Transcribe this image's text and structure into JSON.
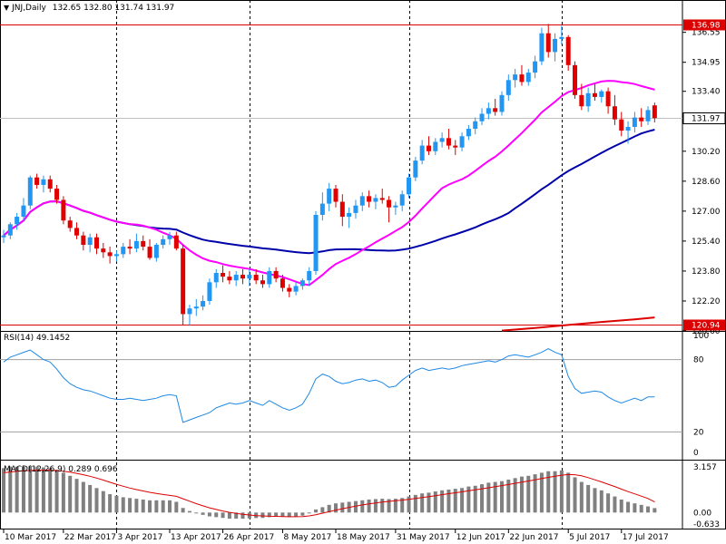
{
  "header": {
    "menu_glyph": "▼",
    "symbol_info": "JNJ,Daily",
    "ohlc": "132.65 132.80 131.74 131.97"
  },
  "colors": {
    "bull": "#2196f3",
    "bear": "#e00000",
    "ma20": "#ff00ff",
    "ma50": "#0000aa",
    "ma200": "#dd0000",
    "hline": "#dd0000",
    "rsi": "#1e88e5",
    "macd_hist": "#808080",
    "macd_signal": "#dd0000",
    "grid": "#000000"
  },
  "chart_data": {
    "type": "candlestick",
    "price_axis": {
      "ylim": [
        120.6,
        137.6
      ],
      "ticks": [
        "136.55",
        "134.95",
        "133.40",
        "131.80",
        "130.20",
        "128.60",
        "127.00",
        "125.40",
        "123.80",
        "122.20",
        "120.60"
      ],
      "hlines": [
        136.98,
        120.94
      ],
      "hline_labels": [
        "136.98",
        "120.94"
      ],
      "last_price": 131.97,
      "last_label": "131.97"
    },
    "x_labels": [
      {
        "idx": 0,
        "text": "10 Mar 2017"
      },
      {
        "idx": 9,
        "text": "22 Mar 2017"
      },
      {
        "idx": 17,
        "text": "3 Apr 2017"
      },
      {
        "idx": 25,
        "text": "13 Apr 2017"
      },
      {
        "idx": 33,
        "text": "26 Apr 2017"
      },
      {
        "idx": 42,
        "text": "8 May 2017"
      },
      {
        "idx": 50,
        "text": "18 May 2017"
      },
      {
        "idx": 59,
        "text": "31 May 2017"
      },
      {
        "idx": 68,
        "text": "12 Jun 2017"
      },
      {
        "idx": 76,
        "text": "22 Jun 2017"
      },
      {
        "idx": 85,
        "text": "5 Jul 2017"
      },
      {
        "idx": 93,
        "text": "17 Jul 2017"
      }
    ],
    "vlines_idx": [
      17,
      37,
      61,
      84
    ],
    "candles": [
      [
        125.6,
        126.0,
        125.3,
        125.7
      ],
      [
        125.7,
        126.4,
        125.5,
        126.3
      ],
      [
        126.3,
        126.9,
        126.0,
        126.7
      ],
      [
        126.7,
        127.7,
        126.5,
        127.3
      ],
      [
        127.3,
        128.9,
        127.1,
        128.8
      ],
      [
        128.8,
        129.0,
        128.2,
        128.4
      ],
      [
        128.4,
        128.9,
        128.0,
        128.7
      ],
      [
        128.7,
        128.9,
        128.0,
        128.2
      ],
      [
        128.2,
        128.4,
        127.4,
        127.6
      ],
      [
        127.6,
        127.8,
        126.3,
        126.5
      ],
      [
        126.5,
        126.7,
        125.9,
        126.1
      ],
      [
        126.1,
        126.4,
        125.5,
        125.7
      ],
      [
        125.7,
        125.9,
        124.9,
        125.2
      ],
      [
        125.2,
        125.8,
        124.8,
        125.6
      ],
      [
        125.6,
        125.8,
        124.7,
        125.0
      ],
      [
        125.0,
        125.3,
        124.5,
        124.8
      ],
      [
        124.8,
        125.1,
        124.2,
        124.6
      ],
      [
        124.6,
        124.9,
        124.3,
        124.7
      ],
      [
        124.7,
        125.3,
        124.5,
        125.1
      ],
      [
        125.1,
        125.5,
        124.7,
        125.0
      ],
      [
        125.0,
        125.8,
        124.8,
        125.4
      ],
      [
        125.4,
        125.7,
        124.9,
        125.1
      ],
      [
        125.1,
        125.5,
        124.4,
        124.5
      ],
      [
        124.5,
        125.3,
        124.3,
        125.2
      ],
      [
        125.2,
        125.7,
        125.0,
        125.5
      ],
      [
        125.5,
        125.9,
        125.2,
        125.7
      ],
      [
        125.7,
        125.9,
        124.9,
        125.0
      ],
      [
        125.0,
        125.2,
        120.9,
        121.5
      ],
      [
        121.5,
        122.0,
        120.9,
        121.8
      ],
      [
        121.8,
        122.3,
        121.4,
        121.9
      ],
      [
        121.9,
        122.5,
        121.7,
        122.2
      ],
      [
        122.2,
        123.4,
        122.0,
        123.2
      ],
      [
        123.2,
        123.9,
        122.9,
        123.7
      ],
      [
        123.7,
        124.1,
        123.2,
        123.5
      ],
      [
        123.5,
        123.8,
        123.1,
        123.3
      ],
      [
        123.3,
        123.8,
        123.0,
        123.6
      ],
      [
        123.6,
        123.9,
        123.1,
        123.4
      ],
      [
        123.4,
        123.9,
        123.0,
        123.6
      ],
      [
        123.6,
        123.9,
        123.1,
        123.3
      ],
      [
        123.3,
        123.6,
        122.9,
        123.1
      ],
      [
        123.1,
        124.0,
        122.9,
        123.8
      ],
      [
        123.8,
        124.0,
        123.2,
        123.4
      ],
      [
        123.4,
        123.6,
        122.7,
        122.9
      ],
      [
        122.9,
        123.1,
        122.4,
        122.7
      ],
      [
        122.7,
        123.2,
        122.5,
        123.0
      ],
      [
        123.0,
        123.4,
        122.8,
        123.3
      ],
      [
        123.3,
        124.0,
        123.0,
        123.8
      ],
      [
        123.8,
        127.0,
        123.6,
        126.8
      ],
      [
        126.8,
        128.0,
        126.5,
        127.4
      ],
      [
        127.4,
        128.5,
        127.0,
        128.2
      ],
      [
        128.2,
        128.4,
        127.2,
        127.5
      ],
      [
        127.5,
        127.9,
        126.2,
        126.7
      ],
      [
        126.7,
        127.2,
        126.1,
        126.9
      ],
      [
        126.9,
        127.6,
        126.6,
        127.3
      ],
      [
        127.3,
        128.0,
        127.0,
        127.8
      ],
      [
        127.8,
        128.1,
        127.2,
        127.5
      ],
      [
        127.5,
        127.9,
        127.1,
        127.7
      ],
      [
        127.7,
        128.2,
        127.4,
        127.6
      ],
      [
        127.6,
        127.8,
        126.4,
        127.2
      ],
      [
        127.2,
        127.5,
        126.8,
        127.3
      ],
      [
        127.3,
        128.1,
        127.0,
        127.9
      ],
      [
        127.9,
        129.0,
        127.7,
        128.8
      ],
      [
        128.8,
        129.9,
        128.6,
        129.7
      ],
      [
        129.7,
        130.8,
        129.5,
        130.5
      ],
      [
        130.5,
        131.0,
        130.0,
        130.2
      ],
      [
        130.2,
        130.9,
        130.0,
        130.7
      ],
      [
        130.7,
        131.2,
        130.4,
        130.9
      ],
      [
        130.9,
        131.4,
        130.3,
        130.5
      ],
      [
        130.5,
        130.8,
        130.0,
        130.4
      ],
      [
        130.4,
        131.2,
        130.2,
        131.0
      ],
      [
        131.0,
        131.6,
        130.8,
        131.4
      ],
      [
        131.4,
        132.0,
        131.1,
        131.8
      ],
      [
        131.8,
        132.5,
        131.6,
        132.2
      ],
      [
        132.2,
        132.8,
        131.9,
        132.5
      ],
      [
        132.5,
        133.0,
        132.1,
        132.3
      ],
      [
        132.3,
        133.4,
        132.1,
        133.2
      ],
      [
        133.2,
        134.3,
        132.9,
        134.0
      ],
      [
        134.0,
        134.6,
        133.6,
        134.3
      ],
      [
        134.3,
        134.8,
        133.7,
        133.9
      ],
      [
        133.9,
        134.6,
        133.7,
        134.4
      ],
      [
        134.4,
        135.3,
        134.1,
        135.0
      ],
      [
        135.0,
        136.8,
        134.8,
        136.5
      ],
      [
        136.5,
        137.0,
        135.2,
        135.5
      ],
      [
        135.5,
        136.5,
        135.0,
        136.2
      ],
      [
        136.2,
        136.9,
        135.9,
        136.3
      ],
      [
        136.3,
        136.4,
        134.5,
        134.8
      ],
      [
        134.8,
        135.0,
        133.0,
        133.2
      ],
      [
        133.2,
        133.8,
        132.4,
        132.6
      ],
      [
        132.6,
        133.6,
        132.3,
        133.3
      ],
      [
        133.3,
        133.8,
        132.9,
        133.1
      ],
      [
        133.1,
        133.5,
        132.8,
        133.4
      ],
      [
        133.4,
        133.6,
        132.2,
        132.6
      ],
      [
        132.6,
        133.2,
        131.6,
        131.9
      ],
      [
        131.9,
        132.3,
        131.0,
        131.3
      ],
      [
        131.3,
        131.8,
        130.6,
        131.5
      ],
      [
        131.5,
        132.3,
        131.2,
        132.0
      ],
      [
        132.0,
        132.5,
        131.5,
        131.8
      ],
      [
        131.8,
        132.6,
        131.6,
        132.4
      ],
      [
        132.65,
        132.8,
        131.74,
        131.97
      ]
    ],
    "ma_periods": [
      20,
      50,
      200
    ],
    "ma200_visible_from_idx": 75,
    "ma200": [
      [
        75,
        120.62
      ],
      [
        80,
        120.76
      ],
      [
        85,
        120.92
      ],
      [
        90,
        121.08
      ],
      [
        95,
        121.22
      ],
      [
        98,
        121.32
      ]
    ],
    "rsi": {
      "label": "RSI(14) 49.1452",
      "levels": [
        80,
        20
      ],
      "level_labels": [
        "80",
        "20"
      ],
      "scale_labels": [
        "100",
        "0"
      ],
      "values": [
        78,
        82,
        84,
        86,
        88,
        84,
        80,
        78,
        72,
        65,
        60,
        57,
        55,
        54,
        52,
        50,
        48,
        47,
        47,
        48,
        47,
        46,
        47,
        48,
        50,
        51,
        50,
        28,
        30,
        32,
        34,
        36,
        40,
        42,
        44,
        43,
        44,
        46,
        44,
        42,
        46,
        43,
        40,
        38,
        40,
        43,
        52,
        64,
        68,
        66,
        62,
        60,
        61,
        63,
        64,
        62,
        63,
        61,
        57,
        58,
        63,
        67,
        71,
        73,
        71,
        72,
        73,
        72,
        73,
        75,
        76,
        77,
        78,
        79,
        78,
        80,
        83,
        84,
        83,
        82,
        84,
        86,
        89,
        86,
        84,
        66,
        56,
        52,
        53,
        54,
        53,
        49,
        46,
        44,
        46,
        48,
        46,
        49,
        49.1
      ]
    },
    "macd": {
      "label": "MACD(12,26,9) 0.289 0.696",
      "scale_labels": [
        "3.157",
        "0.00",
        "-0.633"
      ],
      "ylim": [
        -0.633,
        3.157
      ],
      "hist": [
        2.9,
        3.0,
        3.0,
        3.0,
        3.05,
        3.0,
        2.95,
        2.9,
        2.8,
        2.6,
        2.4,
        2.2,
        2.0,
        1.8,
        1.6,
        1.4,
        1.2,
        1.1,
        1.0,
        0.95,
        0.9,
        0.85,
        0.8,
        0.8,
        0.8,
        0.8,
        0.7,
        0.3,
        0.1,
        -0.05,
        -0.15,
        -0.25,
        -0.3,
        -0.35,
        -0.4,
        -0.4,
        -0.4,
        -0.38,
        -0.36,
        -0.35,
        -0.3,
        -0.28,
        -0.28,
        -0.3,
        -0.28,
        -0.2,
        -0.05,
        0.2,
        0.35,
        0.5,
        0.6,
        0.65,
        0.7,
        0.75,
        0.8,
        0.85,
        0.88,
        0.9,
        0.88,
        0.9,
        0.95,
        1.05,
        1.15,
        1.25,
        1.3,
        1.38,
        1.45,
        1.5,
        1.55,
        1.6,
        1.7,
        1.75,
        1.85,
        1.95,
        2.0,
        2.05,
        2.15,
        2.25,
        2.35,
        2.4,
        2.5,
        2.6,
        2.7,
        2.7,
        2.75,
        2.6,
        2.3,
        2.0,
        1.8,
        1.6,
        1.45,
        1.25,
        1.05,
        0.85,
        0.7,
        0.6,
        0.5,
        0.4,
        0.29
      ],
      "signal": [
        2.6,
        2.65,
        2.7,
        2.72,
        2.75,
        2.76,
        2.77,
        2.76,
        2.74,
        2.7,
        2.64,
        2.56,
        2.47,
        2.37,
        2.25,
        2.12,
        1.98,
        1.84,
        1.72,
        1.6,
        1.5,
        1.41,
        1.32,
        1.25,
        1.18,
        1.12,
        1.06,
        0.9,
        0.74,
        0.58,
        0.44,
        0.31,
        0.2,
        0.1,
        0.01,
        -0.06,
        -0.12,
        -0.16,
        -0.2,
        -0.22,
        -0.24,
        -0.25,
        -0.26,
        -0.27,
        -0.27,
        -0.26,
        -0.22,
        -0.14,
        -0.04,
        0.06,
        0.16,
        0.25,
        0.34,
        0.42,
        0.5,
        0.57,
        0.63,
        0.69,
        0.73,
        0.77,
        0.81,
        0.86,
        0.92,
        0.98,
        1.04,
        1.1,
        1.17,
        1.23,
        1.29,
        1.35,
        1.42,
        1.48,
        1.55,
        1.62,
        1.69,
        1.76,
        1.83,
        1.91,
        1.99,
        2.06,
        2.14,
        2.22,
        2.3,
        2.37,
        2.44,
        2.48,
        2.47,
        2.4,
        2.28,
        2.14,
        2.0,
        1.85,
        1.7,
        1.53,
        1.37,
        1.22,
        1.07,
        0.92,
        0.696
      ]
    }
  }
}
